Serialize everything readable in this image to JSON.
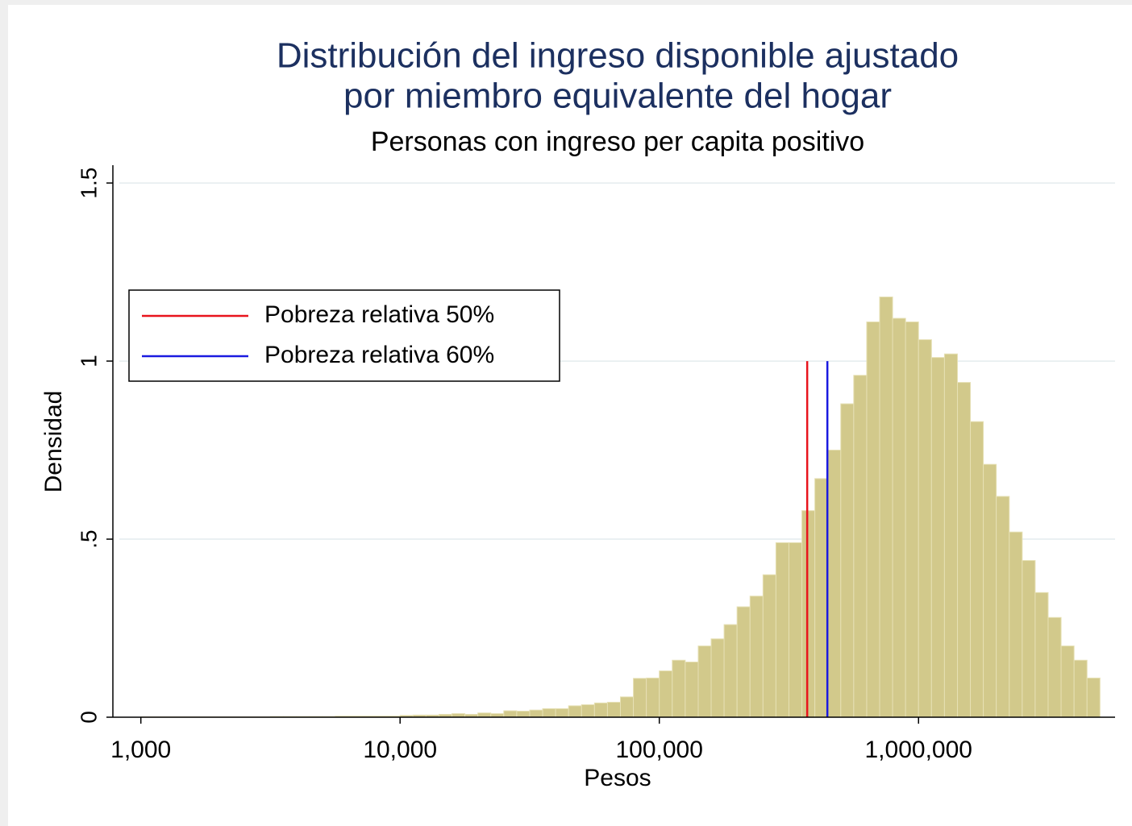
{
  "chart_data": {
    "type": "histogram",
    "title": [
      "Distribución del ingreso disponible ajustado",
      "por miembro equivalente del hogar"
    ],
    "subtitle": "Personas con ingreso per capita positivo",
    "x_label": "Pesos",
    "y_label": "Densidad",
    "x_log": true,
    "grid": true,
    "legend_position": "upper-left",
    "color": "#d2c98b",
    "bins": [
      1000,
      1122,
      1259,
      1413,
      1585,
      1778,
      1995,
      2239,
      2512,
      2818,
      3162,
      3548,
      3981,
      4467,
      5012,
      5623,
      6310,
      7079,
      7943,
      8913,
      10000,
      11220,
      12590,
      14130,
      15850,
      17780,
      19950,
      22390,
      25120,
      28180,
      31620,
      35480,
      39810,
      44670,
      50120,
      56230,
      63100,
      70790,
      79430,
      89130,
      100000,
      112200,
      125900,
      141300,
      158500,
      177800,
      199500,
      223900,
      251200,
      281800,
      316200,
      354800,
      398100,
      446700,
      501200,
      562300,
      631000,
      707900,
      794300,
      891300,
      1000000,
      1122000,
      1259000,
      1413000,
      1585000,
      1778000,
      1995000,
      2239000,
      2512000,
      2818000,
      3162000,
      3548000,
      3981000,
      4467000,
      5012000
    ],
    "values": [
      0.001,
      0.001,
      0.001,
      0.001,
      0.001,
      0.001,
      0.001,
      0.001,
      0.001,
      0.001,
      0.002,
      0.002,
      0.002,
      0.002,
      0.002,
      0.003,
      0.003,
      0.003,
      0.003,
      0.003,
      0.005,
      0.006,
      0.006,
      0.008,
      0.01,
      0.008,
      0.012,
      0.01,
      0.018,
      0.017,
      0.02,
      0.024,
      0.024,
      0.032,
      0.035,
      0.04,
      0.042,
      0.057,
      0.109,
      0.11,
      0.13,
      0.16,
      0.155,
      0.2,
      0.22,
      0.26,
      0.31,
      0.34,
      0.4,
      0.49,
      0.49,
      0.58,
      0.67,
      0.75,
      0.88,
      0.96,
      1.11,
      1.18,
      1.12,
      1.11,
      1.06,
      1.01,
      1.02,
      0.94,
      0.83,
      0.71,
      0.62,
      0.52,
      0.44,
      0.35,
      0.28,
      0.2,
      0.16,
      0.11
    ],
    "lines": [
      {
        "name": "Pobreza relativa 50%",
        "color": "#e8141c",
        "x": 372000,
        "ymax": 1
      },
      {
        "name": "Pobreza relativa 60%",
        "color": "#1a1ae0",
        "x": 445000,
        "ymax": 1
      }
    ],
    "xlim": [
      780,
      5730000
    ],
    "xticks": [
      {
        "value": 1000,
        "label": "1,000"
      },
      {
        "value": 10000,
        "label": "10,000"
      },
      {
        "value": 100000,
        "label": "100,000"
      },
      {
        "value": 1000000,
        "label": "1,000,000"
      }
    ],
    "ylim": [
      0,
      1.55
    ],
    "yticks": [
      0,
      {
        "value": 0.5,
        "label": ".5"
      },
      1,
      1.5
    ]
  }
}
